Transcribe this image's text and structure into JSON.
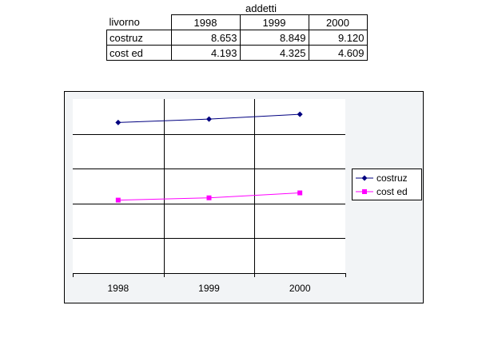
{
  "sheet": {
    "title": "addetti",
    "table": {
      "corner_label": "livorno",
      "years": [
        "1998",
        "1999",
        "2000"
      ],
      "rows": [
        {
          "label": "costruz",
          "values": [
            "8.653",
            "8.849",
            "9.120"
          ]
        },
        {
          "label": "cost ed",
          "values": [
            "4.193",
            "4.325",
            "4.609"
          ]
        }
      ]
    }
  },
  "colors": {
    "chart_background": "#f2f4f6",
    "plot_background": "#ffffff",
    "series_costruz": "#000080",
    "series_cost_ed": "#ff00ff",
    "gridline": "#000000"
  },
  "chart_data": {
    "type": "line",
    "title": "",
    "xlabel": "",
    "ylabel": "",
    "categories": [
      "1998",
      "1999",
      "2000"
    ],
    "ylim": [
      0,
      10000
    ],
    "grid": true,
    "legend": "right",
    "series": [
      {
        "name": "costruz",
        "values": [
          8653,
          8849,
          9120
        ],
        "marker": "diamond",
        "color": "#000080"
      },
      {
        "name": "cost ed",
        "values": [
          4193,
          4325,
          4609
        ],
        "marker": "square",
        "color": "#ff00ff"
      }
    ]
  }
}
